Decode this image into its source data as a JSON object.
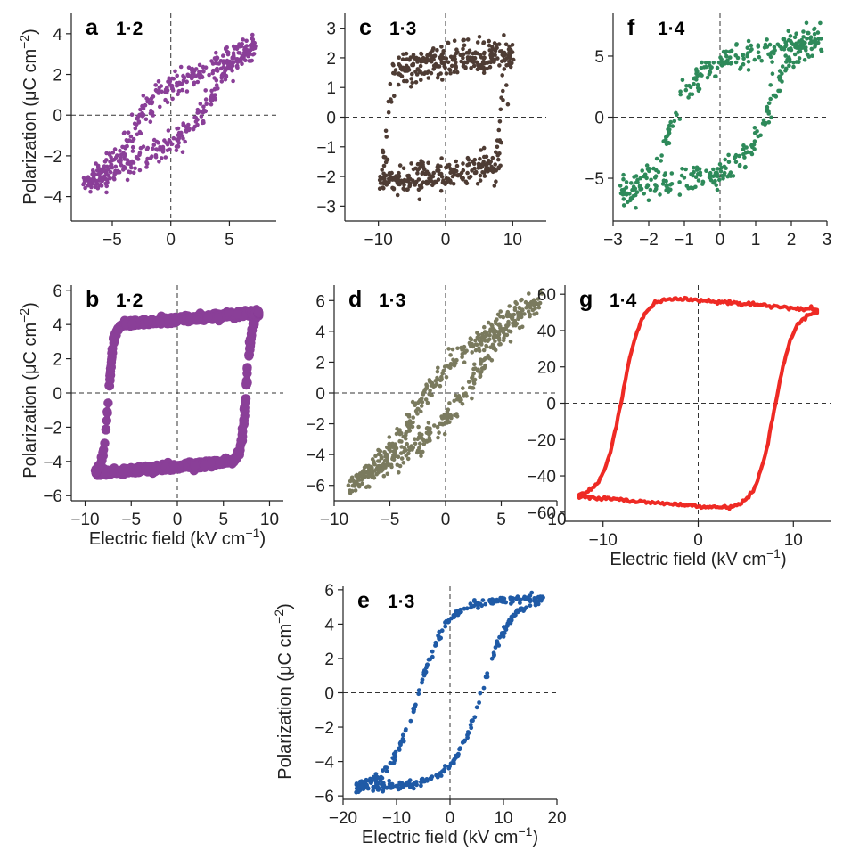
{
  "figure": {
    "ylabel_text": "Polarization (μC cm",
    "ylabel_sup": "−2",
    "ylabel_close": ")",
    "xlabel_text": "Electric field (kV cm",
    "xlabel_sup": "−1",
    "xlabel_close": ")"
  },
  "chart_data": [
    {
      "panel": "a",
      "ratio": "1·2",
      "type": "scatter",
      "style": "noisy",
      "color": "#8a3f98",
      "xlim": [
        -8.5,
        9
      ],
      "ylim": [
        -5.2,
        5
      ],
      "xticks": [
        -5,
        0,
        5
      ],
      "xtick_labels": [
        "−5",
        "0",
        "5"
      ],
      "yticks": [
        -4,
        -2,
        0,
        2,
        4
      ],
      "ytick_labels": [
        "−4",
        "−2",
        "0",
        "2",
        "4"
      ],
      "show_xlabel": false,
      "show_ylabel": true,
      "loop": {
        "xmax": 7.3,
        "ec": 3.5,
        "ps": 1.6,
        "ymax": 3.4,
        "sat": 2.3,
        "noise": 0.32,
        "n": 520
      }
    },
    {
      "panel": "c",
      "ratio": "1·3",
      "type": "scatter",
      "style": "noisy",
      "color": "#4e3c34",
      "xlim": [
        -15,
        15
      ],
      "ylim": [
        -3.5,
        3.5
      ],
      "xticks": [
        -10,
        0,
        10
      ],
      "xtick_labels": [
        "−10",
        "0",
        "10"
      ],
      "yticks": [
        -3,
        -2,
        -1,
        0,
        1,
        2,
        3
      ],
      "ytick_labels": [
        "−3",
        "−2",
        "−1",
        "0",
        "1",
        "2",
        "3"
      ],
      "show_xlabel": false,
      "show_ylabel": false,
      "loop": {
        "xmax": 9.8,
        "ec": 8.5,
        "ps": 1.85,
        "ymax": 2.1,
        "sat": 0.25,
        "noise": 0.27,
        "n": 520
      }
    },
    {
      "panel": "f",
      "ratio": "1·4",
      "type": "scatter",
      "style": "noisy",
      "color": "#2e8a5a",
      "xlim": [
        -3,
        3
      ],
      "ylim": [
        -8.5,
        8.5
      ],
      "xticks": [
        -3,
        -2,
        -1,
        0,
        1,
        2,
        3
      ],
      "xtick_labels": [
        "−3",
        "−2",
        "−1",
        "0",
        "1",
        "2",
        "3"
      ],
      "yticks": [
        -5,
        0,
        5
      ],
      "ytick_labels": [
        "−5",
        "0",
        "5"
      ],
      "show_xlabel": false,
      "show_ylabel": false,
      "loop": {
        "xmax": 2.8,
        "ec": 1.35,
        "ps": 2.4,
        "ymax": 6.2,
        "sat": 0.85,
        "noise": 0.55,
        "n": 430
      }
    },
    {
      "panel": "b",
      "ratio": "1·2",
      "type": "scatter",
      "style": "thick",
      "color": "#8a3f98",
      "xlim": [
        -11.5,
        11.5
      ],
      "ylim": [
        -6.3,
        6.3
      ],
      "xticks": [
        -10,
        -5,
        0,
        5,
        10
      ],
      "xtick_labels": [
        "−10",
        "−5",
        "0",
        "5",
        "10"
      ],
      "yticks": [
        -6,
        -4,
        -2,
        0,
        2,
        4,
        6
      ],
      "ytick_labels": [
        "−6",
        "−4",
        "−2",
        "0",
        "2",
        "4",
        "6"
      ],
      "show_xlabel": true,
      "show_ylabel": true,
      "loop": {
        "xmax": 8.8,
        "ec": 7.5,
        "ps": 4.2,
        "ymax": 4.6,
        "sat": 0.4,
        "noise": 0.09,
        "n": 1100
      }
    },
    {
      "panel": "d",
      "ratio": "1·3",
      "type": "scatter",
      "style": "noisy",
      "color": "#7a7a5e",
      "xlim": [
        -10,
        10
      ],
      "ylim": [
        -7,
        7
      ],
      "xticks": [
        -10,
        -5,
        0,
        5,
        10
      ],
      "xtick_labels": [
        "−10",
        "−5",
        "0",
        "5",
        "10"
      ],
      "yticks": [
        -6,
        -4,
        -2,
        0,
        2,
        4,
        6
      ],
      "ytick_labels": [
        "−6",
        "−4",
        "−2",
        "0",
        "2",
        "4",
        "6"
      ],
      "show_xlabel": false,
      "show_ylabel": false,
      "loop": {
        "xmax": 8.7,
        "ec": 2.8,
        "ps": 1.9,
        "ymax": 6.1,
        "sat": 3.7,
        "noise": 0.4,
        "n": 560
      }
    },
    {
      "panel": "g",
      "ratio": "1·4",
      "type": "line",
      "style": "line",
      "color": "#ee2a24",
      "xlim": [
        -14,
        14
      ],
      "ylim": [
        -65,
        65
      ],
      "xticks": [
        -10,
        0,
        10
      ],
      "xtick_labels": [
        "−10",
        "0",
        "10"
      ],
      "yticks": [
        -60,
        -40,
        -20,
        0,
        20,
        40,
        60
      ],
      "ytick_labels": [
        "−60",
        "−40",
        "−20",
        "0",
        "20",
        "40",
        "60"
      ],
      "show_xlabel": true,
      "show_ylabel": false,
      "loop": {
        "xmax": 12.5,
        "ec": 8,
        "ps": 53,
        "ymax": 50,
        "sat": -5,
        "noise": 0.5,
        "n": 500
      }
    },
    {
      "panel": "e",
      "ratio": "1·3",
      "type": "scatter",
      "style": "sparse",
      "color": "#1f5aa6",
      "xlim": [
        -20,
        20
      ],
      "ylim": [
        -6.2,
        6.2
      ],
      "xticks": [
        -20,
        -10,
        0,
        10,
        20
      ],
      "xtick_labels": [
        "−20",
        "−10",
        "0",
        "10",
        "20"
      ],
      "yticks": [
        -6,
        -4,
        -2,
        0,
        2,
        4,
        6
      ],
      "ytick_labels": [
        "−6",
        "−4",
        "−2",
        "0",
        "2",
        "4",
        "6"
      ],
      "show_xlabel": true,
      "show_ylabel": true,
      "loop": {
        "xmax": 17.5,
        "ec": 6,
        "ps": 4.7,
        "ymax": 5.45,
        "sat": 0.35,
        "noise": 0.12,
        "n": 400
      }
    }
  ]
}
